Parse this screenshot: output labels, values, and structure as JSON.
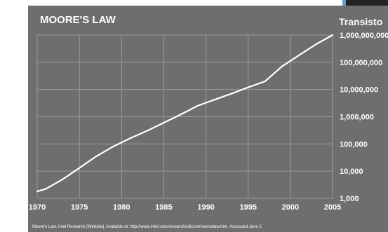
{
  "colors": {
    "panel": "#6e6e6e",
    "grid": "#9a9a9a",
    "line": "#ffffff",
    "text": "#ffffff"
  },
  "chart_data": {
    "type": "line",
    "title": "MOORE'S LAW",
    "ylabel": "Transisto",
    "xlabel": "",
    "y_scale": "log",
    "xlim": [
      1970,
      2005
    ],
    "ylim": [
      1000,
      1000000000
    ],
    "grid": true,
    "x_ticks": [
      "1970",
      "1975",
      "1980",
      "1985",
      "1990",
      "1995",
      "2000",
      "2005"
    ],
    "y_ticks": [
      "1,000",
      "10,000",
      "100,000",
      "1,000,000",
      "10,000,000",
      "100,000,000",
      "1,000,000,000"
    ],
    "series": [
      {
        "x": [
          1970,
          1971,
          1973,
          1975,
          1977,
          1979,
          1981,
          1983,
          1985,
          1987,
          1989,
          1991,
          1993,
          1995,
          1997,
          1999,
          2001,
          2003,
          2005
        ],
        "y": [
          1800,
          2200,
          5000,
          13000,
          35000,
          80000,
          160000,
          300000,
          600000,
          1200000,
          2500000,
          4200000,
          7000000,
          12000000,
          20000000,
          70000000,
          180000000,
          450000000,
          1000000000
        ]
      }
    ],
    "source": "Moore's Law. Intel Research [Website]. Available at: http://www.intel.com/research/silicon/mooreslaw.htm. Accessed June 2"
  }
}
